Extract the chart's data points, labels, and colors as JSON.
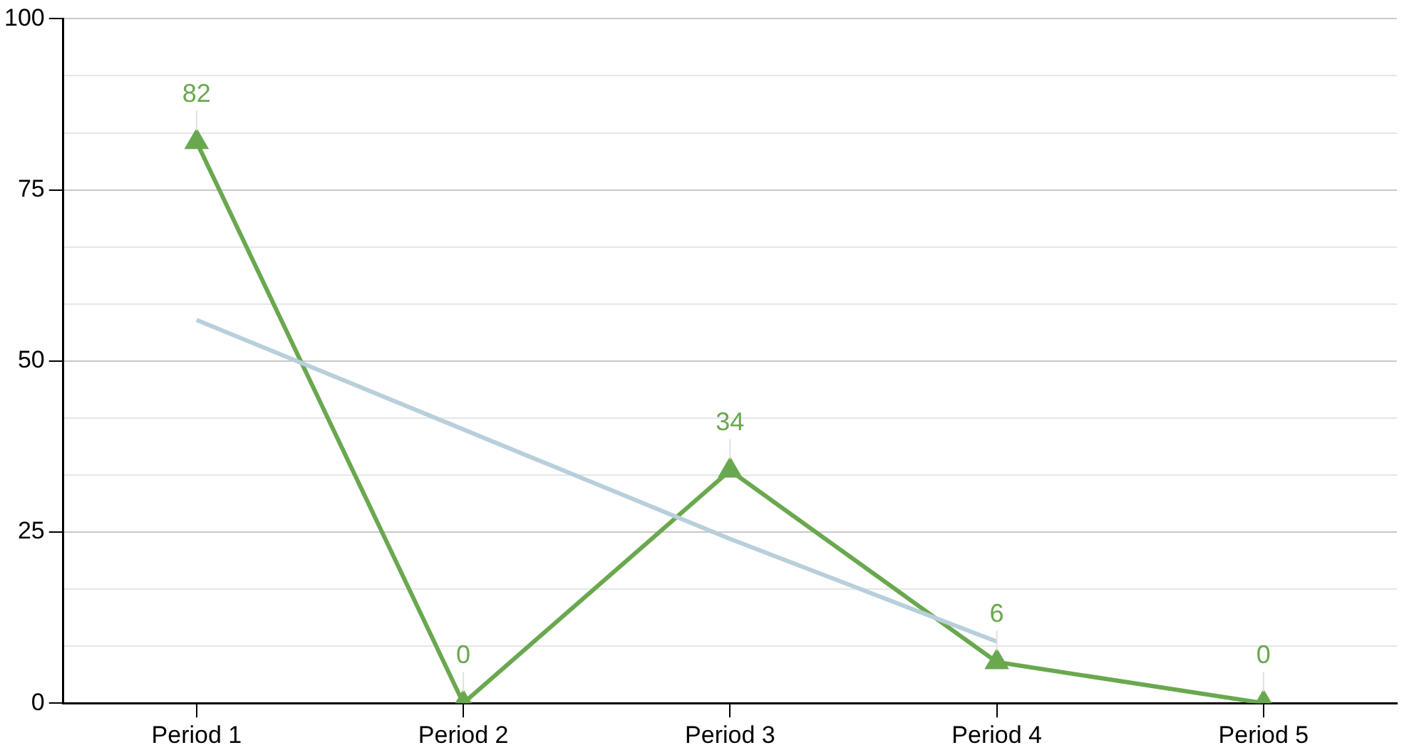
{
  "chart_data": {
    "type": "line",
    "categories": [
      "Period 1",
      "Period 2",
      "Period 3",
      "Period 4",
      "Period 5"
    ],
    "series": [
      {
        "color": "#6aa84f",
        "values": [
          82,
          0,
          34,
          6,
          0
        ],
        "value_labels": [
          "82",
          "0",
          "34",
          "6",
          "0"
        ],
        "marker": "triangle"
      },
      {
        "type": "line",
        "color": "#b8cfdc",
        "values": [
          56,
          40,
          24,
          9,
          null
        ],
        "marker": "none"
      }
    ],
    "ylim": [
      0,
      100
    ],
    "yticks": [
      0,
      {
        "value": 8.33,
        "label": null
      },
      {
        "value": 16.67,
        "label": null
      },
      25,
      {
        "value": 33.33,
        "label": null
      },
      {
        "value": 41.67,
        "label": null
      },
      50,
      {
        "value": 58.33,
        "label": null
      },
      {
        "value": 66.67,
        "label": null
      },
      75,
      {
        "value": 83.33,
        "label": null
      },
      {
        "value": 91.67,
        "label": null
      },
      100
    ],
    "grid": "y",
    "legend": false
  }
}
